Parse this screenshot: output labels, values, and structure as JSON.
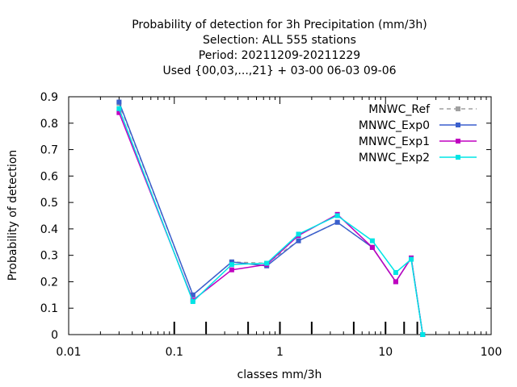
{
  "chart_data": {
    "type": "line",
    "title_lines": [
      "Probability of detection  for 3h Precipitation (mm/3h)",
      "Selection: ALL    555 stations",
      "Period: 20211209-20211229",
      "Used {00,03,...,21} + 03-00 06-03 09-06"
    ],
    "xlabel": "classes mm/3h",
    "ylabel": "Probability of detection",
    "xscale": "log",
    "xlim": [
      0.01,
      100
    ],
    "ylim": [
      0,
      0.9
    ],
    "x_ticks": [
      0.01,
      0.1,
      1,
      10,
      100
    ],
    "x_tick_labels": [
      "0.01",
      "0.1",
      "1",
      "10",
      "100"
    ],
    "y_ticks": [
      0,
      0.1,
      0.2,
      0.3,
      0.4,
      0.5,
      0.6,
      0.7,
      0.8,
      0.9
    ],
    "y_tick_labels": [
      "0",
      "0.1",
      "0.2",
      "0.3",
      "0.4",
      "0.5",
      "0.6",
      "0.7",
      "0.8",
      "0.9"
    ],
    "class_marks": [
      0.1,
      0.2,
      0.5,
      1,
      2,
      5,
      10,
      15,
      20
    ],
    "grid": false,
    "legend_position": "top-right",
    "x": [
      0.03,
      0.15,
      0.35,
      0.75,
      1.5,
      3.5,
      7.5,
      12.5,
      17.5,
      22.5
    ],
    "series": [
      {
        "name": "MNWC_Ref",
        "color": "#a0a0a0",
        "dashed": true,
        "values": [
          0.875,
          0.15,
          0.275,
          0.27,
          0.355,
          0.425,
          0.33,
          0.2,
          0.29,
          0
        ]
      },
      {
        "name": "MNWC_Exp0",
        "color": "#3a5fcd",
        "dashed": false,
        "values": [
          0.88,
          0.15,
          0.275,
          0.26,
          0.355,
          0.425,
          0.33,
          0.2,
          0.29,
          0
        ]
      },
      {
        "name": "MNWC_Exp1",
        "color": "#c000c0",
        "dashed": false,
        "values": [
          0.84,
          0.13,
          0.245,
          0.265,
          0.375,
          0.455,
          0.33,
          0.2,
          0.29,
          0
        ]
      },
      {
        "name": "MNWC_Exp2",
        "color": "#00e5e5",
        "dashed": false,
        "values": [
          0.855,
          0.125,
          0.265,
          0.27,
          0.38,
          0.45,
          0.355,
          0.235,
          0.285,
          0
        ]
      }
    ]
  }
}
